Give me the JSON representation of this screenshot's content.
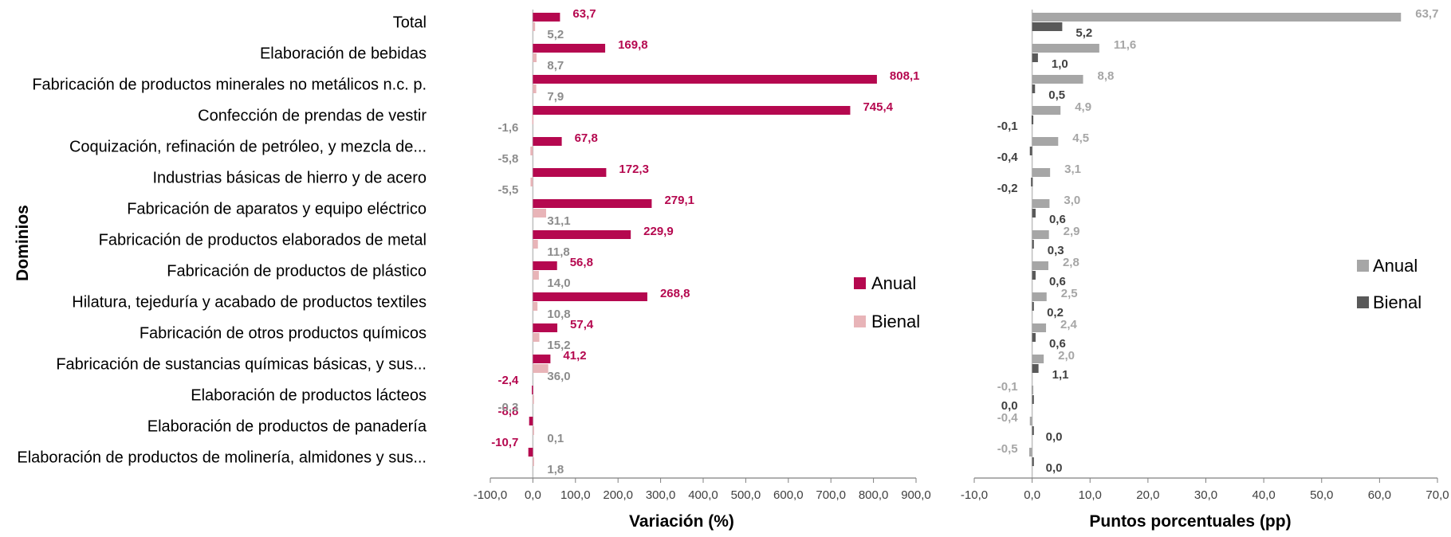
{
  "chart_data": [
    {
      "type": "bar",
      "orientation": "horizontal",
      "categories": [
        "Total",
        "Elaboración de bebidas",
        "Fabricación de productos minerales no metálicos n.c. p.",
        "Confección de prendas de vestir",
        "Coquización, refinación de petróleo, y mezcla de...",
        "Industrias básicas de hierro y de acero",
        "Fabricación de aparatos y equipo eléctrico",
        "Fabricación de productos elaborados de metal",
        "Fabricación de productos de plástico",
        "Hilatura, tejeduría y acabado de productos textiles",
        "Fabricación de otros productos químicos",
        "Fabricación de sustancias químicas básicas, y sus...",
        "Elaboración de productos lácteos",
        "Elaboración de productos de panadería",
        "Elaboración de productos de molinería, almidones y sus..."
      ],
      "series": [
        {
          "name": "Anual",
          "color": "#b5084f",
          "values": [
            63.7,
            169.8,
            808.1,
            745.4,
            67.8,
            172.3,
            279.1,
            229.9,
            56.8,
            268.8,
            57.4,
            41.2,
            -2.4,
            -8.8,
            -10.7
          ],
          "labels": [
            "63,7",
            "169,8",
            "808,1",
            "745,4",
            "67,8",
            "172,3",
            "279,1",
            "229,9",
            "56,8",
            "268,8",
            "57,4",
            "41,2",
            "-2,4",
            "-8,8",
            "-10,7"
          ]
        },
        {
          "name": "Bienal",
          "color": "#e8b4b8",
          "values": [
            5.2,
            8.7,
            7.9,
            -1.6,
            -5.8,
            -5.5,
            31.1,
            11.8,
            14.0,
            10.8,
            15.2,
            36.0,
            -0.3,
            0.1,
            1.8
          ],
          "labels": [
            "5,2",
            "8,7",
            "7,9",
            "-1,6",
            "-5,8",
            "-5,5",
            "31,1",
            "11,8",
            "14,0",
            "10,8",
            "15,2",
            "36,0",
            "-0,3",
            "0,1",
            "1,8"
          ]
        }
      ],
      "xlabel": "Variación (%)",
      "ylabel": "Dominios",
      "xlim": [
        -100,
        900
      ],
      "xticks": [
        "-100,0",
        "0,0",
        "100,0",
        "200,0",
        "300,0",
        "400,0",
        "500,0",
        "600,0",
        "700,0",
        "800,0",
        "900,0"
      ],
      "legend_position": "right"
    },
    {
      "type": "bar",
      "orientation": "horizontal",
      "series": [
        {
          "name": "Anual",
          "color": "#a6a6a6",
          "values": [
            63.7,
            11.6,
            8.8,
            4.9,
            4.5,
            3.1,
            3.0,
            2.9,
            2.8,
            2.5,
            2.4,
            2.0,
            -0.1,
            -0.4,
            -0.5
          ],
          "labels": [
            "63,7",
            "11,6",
            "8,8",
            "4,9",
            "4,5",
            "3,1",
            "3,0",
            "2,9",
            "2,8",
            "2,5",
            "2,4",
            "2,0",
            "-0,1",
            "-0,4",
            "-0,5"
          ]
        },
        {
          "name": "Bienal",
          "color": "#595959",
          "values": [
            5.2,
            1.0,
            0.5,
            -0.1,
            -0.4,
            -0.2,
            0.6,
            0.3,
            0.6,
            0.2,
            0.6,
            1.1,
            0.0,
            0.0,
            0.0
          ],
          "labels": [
            "5,2",
            "1,0",
            "0,5",
            "-0,1",
            "-0,4",
            "-0,2",
            "0,6",
            "0,3",
            "0,6",
            "0,2",
            "0,6",
            "1,1",
            "0,0",
            "0,0",
            "0,0"
          ]
        }
      ],
      "xlabel": "Puntos porcentuales (pp)",
      "xlim": [
        -10,
        70
      ],
      "xticks": [
        "-10,0",
        "0,0",
        "10,0",
        "20,0",
        "30,0",
        "40,0",
        "50,0",
        "60,0",
        "70,0"
      ],
      "legend_position": "right"
    }
  ]
}
